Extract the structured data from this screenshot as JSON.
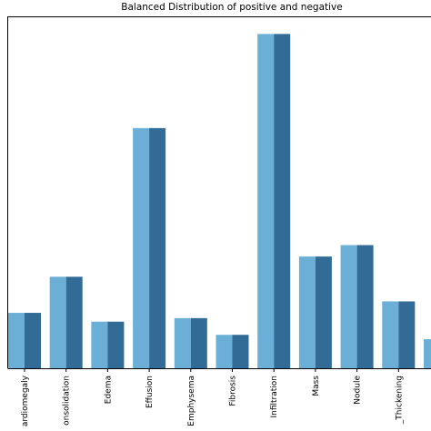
{
  "chart_data": {
    "type": "bar",
    "title": "Balanced Distribution of positive and negative",
    "categories": [
      "ardiomegaly",
      "onsolidation",
      "Edema",
      "Effusion",
      "Emphysema",
      "Fibrosis",
      "Infiltration",
      "Mass",
      "Nodule",
      "_Thickening",
      null
    ],
    "series": [
      {
        "color": "#6baed6",
        "values": [
          63,
          104,
          53,
          273,
          57,
          38,
          380,
          127,
          140,
          76,
          33
        ]
      },
      {
        "color": "#316b96",
        "values": [
          63,
          104,
          53,
          273,
          57,
          38,
          380,
          127,
          140,
          76,
          33
        ]
      }
    ],
    "ylim": [
      0,
      400
    ]
  }
}
